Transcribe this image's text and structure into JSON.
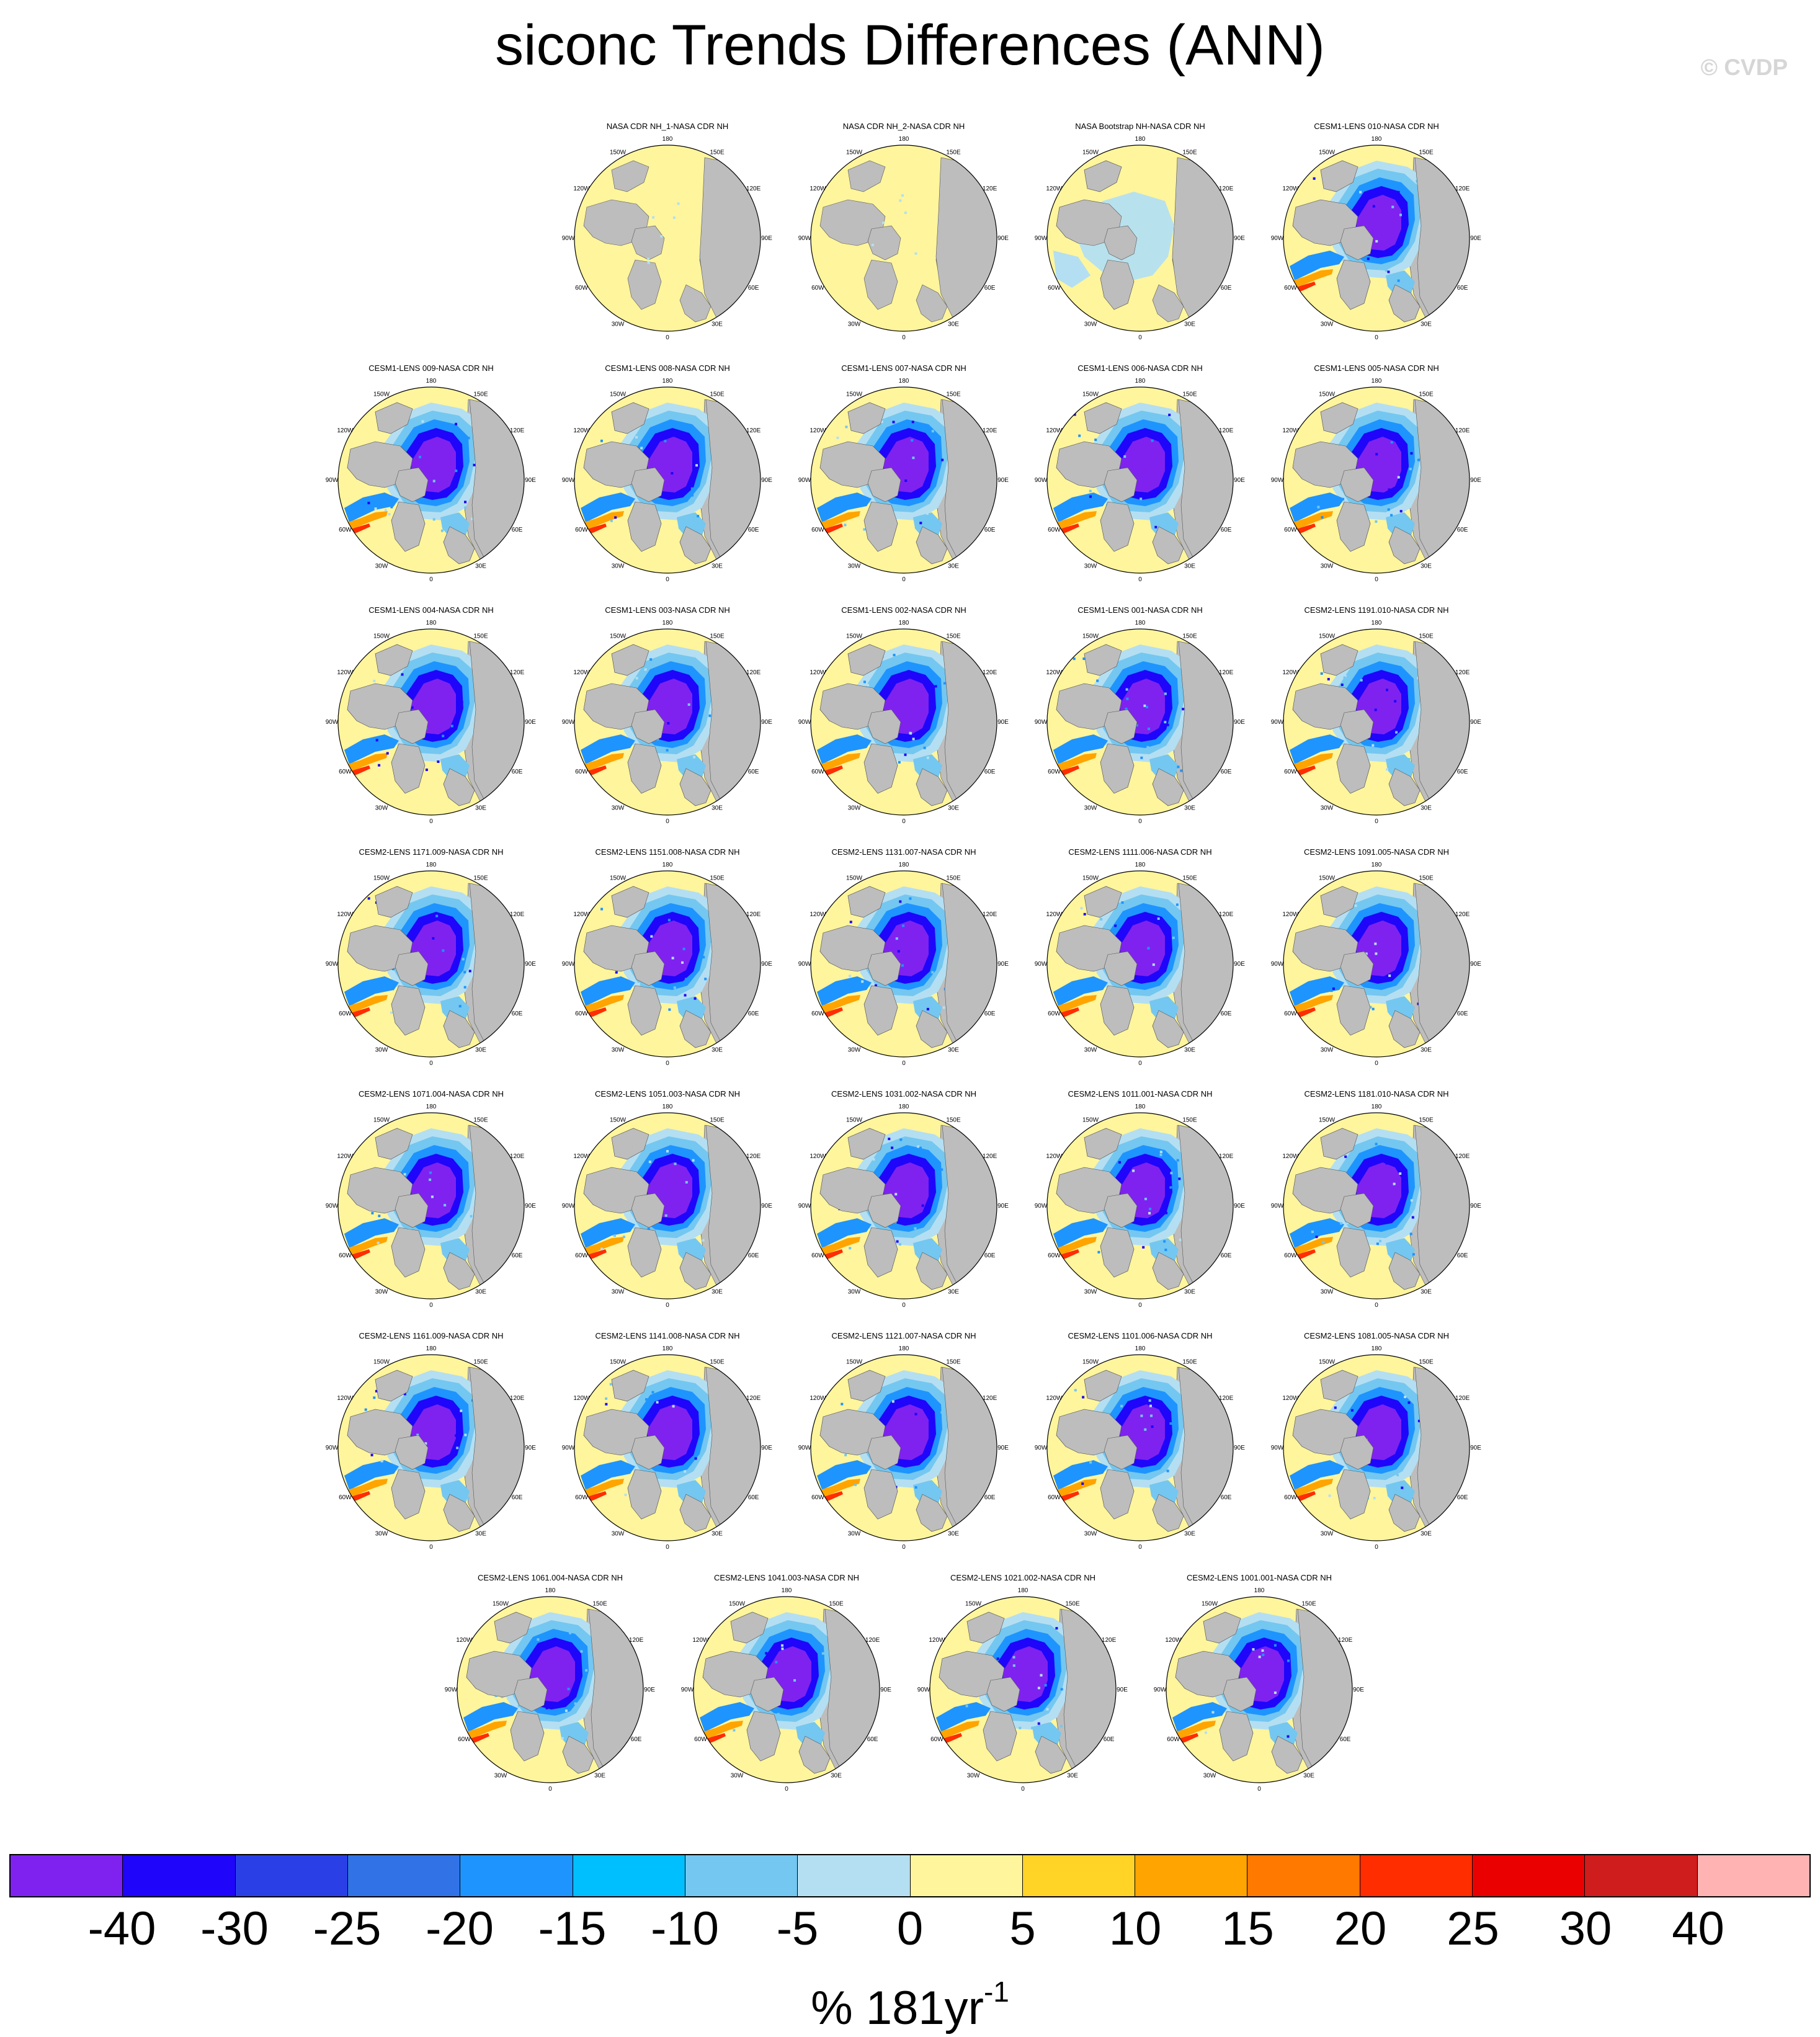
{
  "header": {
    "title": "siconc Trends Differences (ANN)",
    "watermark": "© CVDP"
  },
  "panels": [
    {
      "label": "NASA CDR NH_1-NASA CDR NH",
      "pattern": "obs-yellow"
    },
    {
      "label": "NASA CDR NH_2-NASA CDR NH",
      "pattern": "obs-yellow"
    },
    {
      "label": "NASA Bootstrap NH-NASA CDR NH",
      "pattern": "obs-mixed"
    },
    {
      "label": "CESM1-LENS 010-NASA CDR NH",
      "pattern": "model"
    },
    {
      "label": "CESM1-LENS 009-NASA CDR NH",
      "pattern": "model"
    },
    {
      "label": "CESM1-LENS 008-NASA CDR NH",
      "pattern": "model"
    },
    {
      "label": "CESM1-LENS 007-NASA CDR NH",
      "pattern": "model"
    },
    {
      "label": "CESM1-LENS 006-NASA CDR NH",
      "pattern": "model"
    },
    {
      "label": "CESM1-LENS 005-NASA CDR NH",
      "pattern": "model"
    },
    {
      "label": "CESM1-LENS 004-NASA CDR NH",
      "pattern": "model"
    },
    {
      "label": "CESM1-LENS 003-NASA CDR NH",
      "pattern": "model"
    },
    {
      "label": "CESM1-LENS 002-NASA CDR NH",
      "pattern": "model"
    },
    {
      "label": "CESM1-LENS 001-NASA CDR NH",
      "pattern": "model"
    },
    {
      "label": "CESM2-LENS 1191.010-NASA CDR NH",
      "pattern": "model"
    },
    {
      "label": "CESM2-LENS 1171.009-NASA CDR NH",
      "pattern": "model"
    },
    {
      "label": "CESM2-LENS 1151.008-NASA CDR NH",
      "pattern": "model"
    },
    {
      "label": "CESM2-LENS 1131.007-NASA CDR NH",
      "pattern": "model"
    },
    {
      "label": "CESM2-LENS 1111.006-NASA CDR NH",
      "pattern": "model"
    },
    {
      "label": "CESM2-LENS 1091.005-NASA CDR NH",
      "pattern": "model"
    },
    {
      "label": "CESM2-LENS 1071.004-NASA CDR NH",
      "pattern": "model"
    },
    {
      "label": "CESM2-LENS 1051.003-NASA CDR NH",
      "pattern": "model"
    },
    {
      "label": "CESM2-LENS 1031.002-NASA CDR NH",
      "pattern": "model"
    },
    {
      "label": "CESM2-LENS 1011.001-NASA CDR NH",
      "pattern": "model"
    },
    {
      "label": "CESM2-LENS 1181.010-NASA CDR NH",
      "pattern": "model"
    },
    {
      "label": "CESM2-LENS 1161.009-NASA CDR NH",
      "pattern": "model"
    },
    {
      "label": "CESM2-LENS 1141.008-NASA CDR NH",
      "pattern": "model"
    },
    {
      "label": "CESM2-LENS 1121.007-NASA CDR NH",
      "pattern": "model"
    },
    {
      "label": "CESM2-LENS 1101.006-NASA CDR NH",
      "pattern": "model"
    },
    {
      "label": "CESM2-LENS 1081.005-NASA CDR NH",
      "pattern": "model"
    },
    {
      "label": "CESM2-LENS 1061.004-NASA CDR NH",
      "pattern": "model"
    },
    {
      "label": "CESM2-LENS 1041.003-NASA CDR NH",
      "pattern": "model"
    },
    {
      "label": "CESM2-LENS 1021.002-NASA CDR NH",
      "pattern": "model"
    },
    {
      "label": "CESM2-LENS 1001.001-NASA CDR NH",
      "pattern": "model"
    }
  ],
  "longitude_labels": [
    "180",
    "150E",
    "120E",
    "90E",
    "60E",
    "30E",
    "0",
    "30W",
    "60W",
    "90W",
    "120W",
    "150W"
  ],
  "colorbar": {
    "colors": [
      "#7f22f0",
      "#1f05fa",
      "#2a40e6",
      "#3173e6",
      "#1e94ff",
      "#00bfff",
      "#74c7f0",
      "#b4dff2",
      "#fff59c",
      "#ffd426",
      "#ffa400",
      "#ff7800",
      "#ff2d00",
      "#ea0000",
      "#cf1c1c",
      "#ffb3b3"
    ],
    "tick_labels": [
      "-40",
      "-30",
      "-25",
      "-20",
      "-15",
      "-10",
      "-5",
      "0",
      "5",
      "10",
      "15",
      "20",
      "25",
      "30",
      "40"
    ],
    "unit_text": "% 181yr",
    "unit_exponent": "-1"
  },
  "map_colors": {
    "land": "#bdbdbd",
    "positive_small": "#fff59c",
    "negative_small": "#b4dff2",
    "neg_10": "#74c7f0",
    "neg_20": "#1e94ff",
    "neg_30": "#1f05fa",
    "neg_40": "#7f22f0",
    "pos_15": "#ffa400",
    "pos_25": "#ff2d00"
  }
}
